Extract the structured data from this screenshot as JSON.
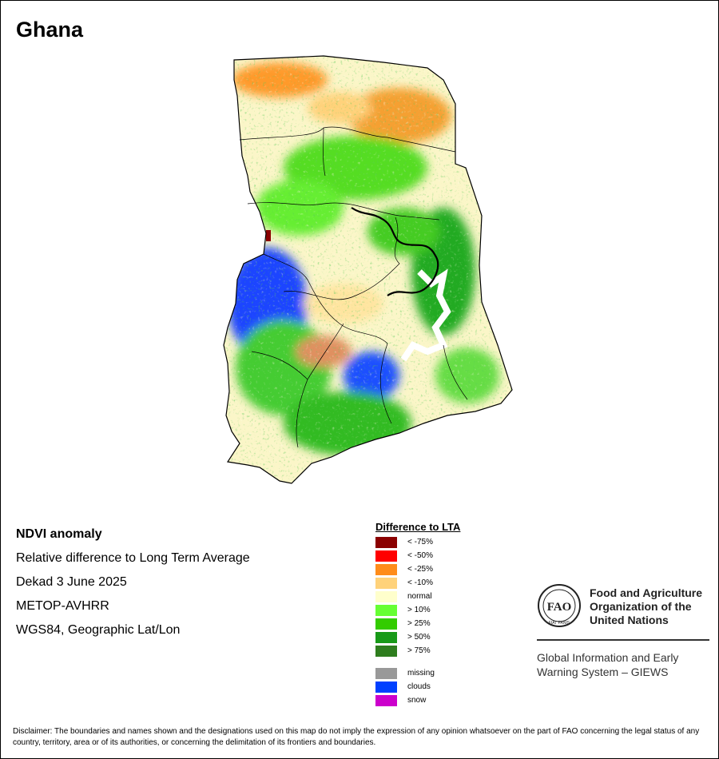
{
  "page": {
    "title": "Ghana"
  },
  "info": {
    "lines": [
      "NDVI anomaly",
      "Relative difference to Long Term Average",
      "Dekad 3 June 2025",
      "METOP-AVHRR",
      "WGS84, Geographic Lat/Lon"
    ]
  },
  "legend": {
    "title": "Difference to LTA",
    "items": [
      {
        "label": "< -75%",
        "color": "#8b0000"
      },
      {
        "label": "< -50%",
        "color": "#ff0000"
      },
      {
        "label": "< -25%",
        "color": "#ff8c1a"
      },
      {
        "label": "< -10%",
        "color": "#ffd27a"
      },
      {
        "label": "normal",
        "color": "#ffffcc"
      },
      {
        "label": "> 10%",
        "color": "#66ff33"
      },
      {
        "label": "> 25%",
        "color": "#33cc00"
      },
      {
        "label": "> 50%",
        "color": "#189a18"
      },
      {
        "label": "> 75%",
        "color": "#2e7d1e"
      }
    ],
    "extra": [
      {
        "label": "missing",
        "color": "#999999"
      },
      {
        "label": "clouds",
        "color": "#0040ff"
      },
      {
        "label": "snow",
        "color": "#cc00cc"
      }
    ]
  },
  "logo": {
    "org": [
      "Food and Agriculture",
      "Organization of the",
      "United Nations"
    ],
    "emblem_text": "FAO",
    "motto": "FIAT PANIS",
    "system": [
      "Global Information and Early",
      "Warning System – GIEWS"
    ]
  },
  "disclaimer": "Disclaimer: The boundaries and names shown and the designations used on this map do not imply the expression of any opinion whatsoever on the part of FAO concerning the legal status of any country, territory, area or of its authorities, or concerning the delimitation of its frontiers and boundaries."
}
